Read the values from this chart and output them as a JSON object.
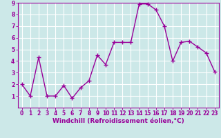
{
  "x": [
    0,
    1,
    2,
    3,
    4,
    5,
    6,
    7,
    8,
    9,
    10,
    11,
    12,
    13,
    14,
    15,
    16,
    17,
    18,
    19,
    20,
    21,
    22,
    23
  ],
  "y": [
    2,
    1,
    4.3,
    1,
    1,
    1.9,
    0.8,
    1.7,
    2.3,
    4.5,
    3.7,
    5.6,
    5.6,
    5.6,
    8.9,
    8.9,
    8.4,
    7,
    4,
    5.6,
    5.7,
    5.2,
    4.7,
    3.1
  ],
  "line_color": "#990099",
  "marker": "+",
  "marker_size": 4,
  "xlabel": "Windchill (Refroidissement éolien,°C)",
  "ylim": [
    0,
    9
  ],
  "xlim": [
    -0.5,
    23.5
  ],
  "yticks": [
    1,
    2,
    3,
    4,
    5,
    6,
    7,
    8,
    9
  ],
  "xticks": [
    0,
    1,
    2,
    3,
    4,
    5,
    6,
    7,
    8,
    9,
    10,
    11,
    12,
    13,
    14,
    15,
    16,
    17,
    18,
    19,
    20,
    21,
    22,
    23
  ],
  "background_color": "#cce8e8",
  "grid_color": "#ffffff",
  "xlabel_fontsize": 6.5,
  "tick_fontsize": 5.5,
  "line_width": 1.0
}
